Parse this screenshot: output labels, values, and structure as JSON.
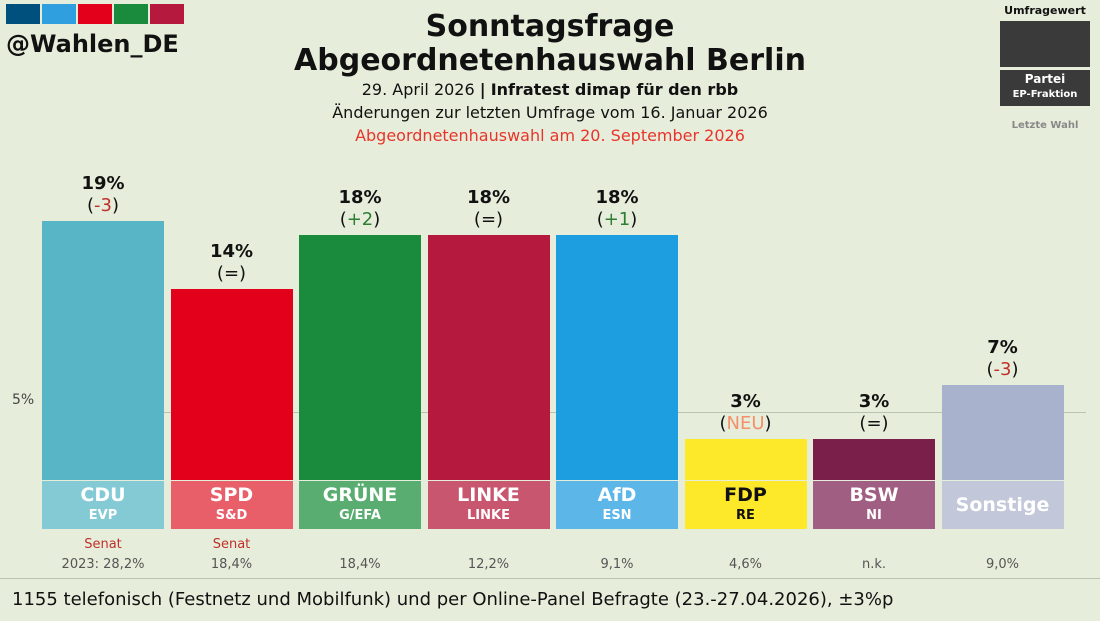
{
  "brand": {
    "handle": "@Wahlen_DE",
    "swatch_colors": [
      "#00507e",
      "#2f9fe0",
      "#e2001a",
      "#1a8a3c",
      "#b5193d"
    ]
  },
  "header": {
    "title_line1": "Sonntagsfrage",
    "title_line2": "Abgeordnetenhauswahl Berlin",
    "date": "29. April 2026",
    "separator": "|",
    "institute": "Infratest dimap für den rbb",
    "changes_note": "Änderungen zur letzten Umfrage vom 16. Januar 2026",
    "election_note": "Abgeordnetenhauswahl am 20. September 2026"
  },
  "legend": {
    "label_top": "Umfragewert",
    "party_label": "Partei",
    "fraction_label": "EP-Fraktion",
    "last_label": "Letzte Wahl"
  },
  "chart_data": {
    "type": "bar",
    "title": "Sonntagsfrage Abgeordnetenhauswahl Berlin",
    "ylabel": "",
    "threshold_label": "5%",
    "threshold_value": 5,
    "ylim": [
      0,
      20
    ],
    "categories": [
      "CDU",
      "SPD",
      "GRÜNE",
      "LINKE",
      "AfD",
      "FDP",
      "BSW",
      "Sonstige"
    ],
    "values": [
      19,
      14,
      18,
      18,
      18,
      3,
      3,
      7
    ],
    "value_labels": [
      "19%",
      "14%",
      "18%",
      "18%",
      "18%",
      "3%",
      "3%",
      "7%"
    ],
    "change_labels": [
      "-3",
      "=",
      "+2",
      "=",
      "+1",
      "NEU",
      "=",
      "-3"
    ],
    "ep_groups": [
      "EVP",
      "S&D",
      "G/EFA",
      "LINKE",
      "ESN",
      "RE",
      "NI",
      ""
    ],
    "colors": [
      "#57b5c5",
      "#e2001a",
      "#1a8a3c",
      "#b5193d",
      "#1d9ee0",
      "#fde82a",
      "#7a1e4a",
      "#a9b2cc"
    ],
    "label_colors": [
      "#84cad4",
      "#e85f69",
      "#5aad70",
      "#c8566f",
      "#5cb6e8",
      "#fde82a",
      "#a05e82",
      "#c2c8d9"
    ],
    "label_text_colors": [
      "#ffffff",
      "#ffffff",
      "#ffffff",
      "#ffffff",
      "#ffffff",
      "#111111",
      "#ffffff",
      "#ffffff"
    ],
    "senat_labels": [
      "Senat",
      "Senat",
      "",
      "",
      "",
      "",
      "",
      ""
    ],
    "last_election": [
      "2023: 28,2%",
      "18,4%",
      "18,4%",
      "12,2%",
      "9,1%",
      "4,6%",
      "n.k.",
      "9,0%"
    ]
  },
  "footer": {
    "text": "1155 telefonisch (Festnetz und Mobilfunk) und per Online-Panel Befragte (23.-27.04.2026), ±3%p"
  }
}
